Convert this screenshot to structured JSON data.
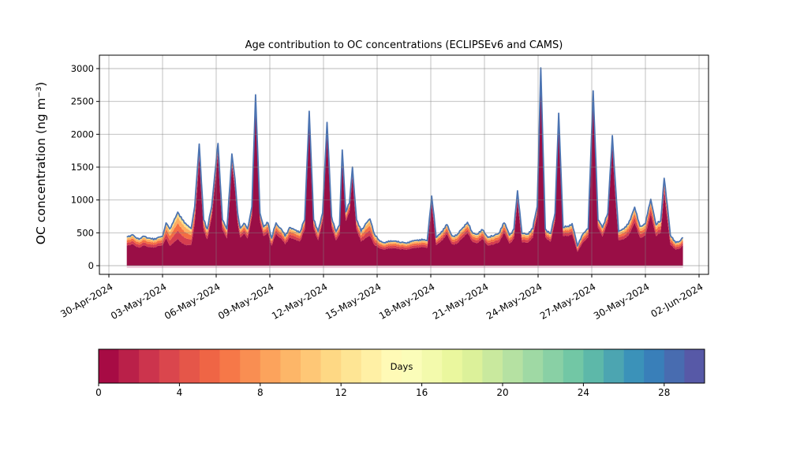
{
  "title": "Age contribution to OC concentrations (ECLIPSEv6 and CAMS)",
  "axes": {
    "ylabel": "OC concentration (ng m⁻³)",
    "yticks": [
      0,
      500,
      1000,
      1500,
      2000,
      2500,
      3000
    ],
    "xtick_labels": [
      "30-Apr-2024",
      "03-May-2024",
      "06-May-2024",
      "09-May-2024",
      "12-May-2024",
      "15-May-2024",
      "18-May-2024",
      "21-May-2024",
      "24-May-2024",
      "27-May-2024",
      "30-May-2024",
      "02-Jun-2024"
    ],
    "xtick_interval_days": 3,
    "grid": true
  },
  "colorbar": {
    "label": "Days",
    "ticks": [
      0,
      4,
      8,
      12,
      16,
      20,
      24,
      28
    ],
    "range": [
      0,
      30
    ],
    "segments": 30,
    "colormap_name": "Spectral",
    "colormap_anchors": [
      "#9e0142",
      "#d53e4f",
      "#f46d43",
      "#fdae61",
      "#fee08b",
      "#ffffbf",
      "#e6f598",
      "#abdda4",
      "#66c2a5",
      "#3288bd",
      "#5e4fa2"
    ]
  },
  "style": {
    "young_color": "#9a0e46",
    "fringe_colors": [
      "#d53e4f",
      "#f46d43",
      "#fdae61",
      "#fee08b"
    ],
    "fringe_cum_fractions": [
      0.32,
      0.59,
      0.82,
      1.0
    ],
    "total_line_color": "#4c74b2",
    "baseline_strip_color": "#dd9cba",
    "grid_color": "rgba(130,130,130,0.55)"
  },
  "chart_data": {
    "type": "area",
    "title": "Age contribution to OC concentrations (ECLIPSEv6 and CAMS)",
    "xlabel": "",
    "ylabel": "OC concentration (ng m⁻³)",
    "x_unit": "days since 30-Apr-2024 00:00",
    "x_range_days": [
      0,
      33
    ],
    "ylim": [
      -135,
      3205
    ],
    "y_data_range": [
      0,
      3010
    ],
    "legend": "colorbar (Days, 0-30, Spectral colormap)",
    "stack_note": "Stacked age-resolved OC: fresh emissions (0 days, dark red) dominate; thin aged fringe (red to orange to pale yellow) lies under the blue total line",
    "point_columns": [
      "day_since_30Apr",
      "total_OC_ng_m3",
      "aged_fringe_fraction"
    ],
    "points": [
      [
        1.0,
        440,
        0.3
      ],
      [
        1.3,
        470,
        0.3
      ],
      [
        1.5,
        430,
        0.31
      ],
      [
        1.75,
        415,
        0.32
      ],
      [
        2.0,
        445,
        0.31
      ],
      [
        2.25,
        420,
        0.32
      ],
      [
        2.5,
        395,
        0.31
      ],
      [
        2.75,
        430,
        0.3
      ],
      [
        3.0,
        445,
        0.31
      ],
      [
        3.2,
        650,
        0.36
      ],
      [
        3.4,
        560,
        0.46
      ],
      [
        3.6,
        660,
        0.48
      ],
      [
        3.85,
        815,
        0.5
      ],
      [
        4.1,
        700,
        0.52
      ],
      [
        4.35,
        620,
        0.5
      ],
      [
        4.6,
        565,
        0.44
      ],
      [
        4.8,
        900,
        0.28
      ],
      [
        5.05,
        1850,
        0.1
      ],
      [
        5.3,
        700,
        0.24
      ],
      [
        5.5,
        560,
        0.28
      ],
      [
        5.75,
        900,
        0.18
      ],
      [
        6.1,
        1860,
        0.09
      ],
      [
        6.35,
        700,
        0.22
      ],
      [
        6.6,
        560,
        0.26
      ],
      [
        6.88,
        1700,
        0.1
      ],
      [
        7.05,
        1320,
        0.12
      ],
      [
        7.2,
        800,
        0.18
      ],
      [
        7.35,
        570,
        0.25
      ],
      [
        7.55,
        645,
        0.24
      ],
      [
        7.75,
        560,
        0.26
      ],
      [
        8.0,
        900,
        0.16
      ],
      [
        8.2,
        2600,
        0.06
      ],
      [
        8.45,
        800,
        0.16
      ],
      [
        8.65,
        590,
        0.24
      ],
      [
        8.9,
        650,
        0.24
      ],
      [
        9.1,
        420,
        0.28
      ],
      [
        9.35,
        650,
        0.25
      ],
      [
        9.6,
        570,
        0.26
      ],
      [
        9.85,
        450,
        0.28
      ],
      [
        10.1,
        580,
        0.26
      ],
      [
        10.4,
        545,
        0.27
      ],
      [
        10.7,
        520,
        0.27
      ],
      [
        10.95,
        700,
        0.22
      ],
      [
        11.2,
        2350,
        0.06
      ],
      [
        11.45,
        700,
        0.2
      ],
      [
        11.7,
        520,
        0.26
      ],
      [
        11.95,
        800,
        0.16
      ],
      [
        12.2,
        2180,
        0.07
      ],
      [
        12.45,
        750,
        0.2
      ],
      [
        12.7,
        520,
        0.26
      ],
      [
        12.9,
        620,
        0.24
      ],
      [
        13.05,
        1760,
        0.09
      ],
      [
        13.25,
        820,
        0.17
      ],
      [
        13.45,
        950,
        0.15
      ],
      [
        13.62,
        1500,
        0.1
      ],
      [
        13.85,
        700,
        0.22
      ],
      [
        14.1,
        520,
        0.3
      ],
      [
        14.35,
        640,
        0.34
      ],
      [
        14.6,
        710,
        0.36
      ],
      [
        14.85,
        480,
        0.34
      ],
      [
        15.1,
        390,
        0.3
      ],
      [
        15.4,
        350,
        0.29
      ],
      [
        15.7,
        365,
        0.29
      ],
      [
        16.0,
        375,
        0.29
      ],
      [
        16.3,
        350,
        0.29
      ],
      [
        16.6,
        345,
        0.29
      ],
      [
        16.9,
        365,
        0.29
      ],
      [
        17.2,
        385,
        0.29
      ],
      [
        17.5,
        405,
        0.28
      ],
      [
        17.8,
        380,
        0.29
      ],
      [
        18.05,
        1060,
        0.1
      ],
      [
        18.3,
        430,
        0.27
      ],
      [
        18.6,
        520,
        0.26
      ],
      [
        18.9,
        625,
        0.24
      ],
      [
        19.2,
        450,
        0.28
      ],
      [
        19.5,
        480,
        0.28
      ],
      [
        19.8,
        580,
        0.26
      ],
      [
        20.05,
        660,
        0.24
      ],
      [
        20.3,
        520,
        0.27
      ],
      [
        20.6,
        480,
        0.28
      ],
      [
        20.9,
        545,
        0.26
      ],
      [
        21.2,
        430,
        0.29
      ],
      [
        21.5,
        450,
        0.29
      ],
      [
        21.8,
        490,
        0.28
      ],
      [
        22.1,
        650,
        0.24
      ],
      [
        22.4,
        465,
        0.28
      ],
      [
        22.65,
        560,
        0.26
      ],
      [
        22.85,
        1140,
        0.12
      ],
      [
        23.1,
        490,
        0.27
      ],
      [
        23.4,
        480,
        0.27
      ],
      [
        23.7,
        560,
        0.25
      ],
      [
        23.95,
        900,
        0.14
      ],
      [
        24.15,
        3010,
        0.05
      ],
      [
        24.4,
        560,
        0.22
      ],
      [
        24.7,
        490,
        0.25
      ],
      [
        24.95,
        800,
        0.14
      ],
      [
        25.15,
        2320,
        0.06
      ],
      [
        25.4,
        580,
        0.22
      ],
      [
        25.65,
        600,
        0.24
      ],
      [
        25.9,
        640,
        0.24
      ],
      [
        26.2,
        300,
        0.3
      ],
      [
        26.5,
        480,
        0.27
      ],
      [
        26.8,
        560,
        0.24
      ],
      [
        27.08,
        2660,
        0.05
      ],
      [
        27.35,
        700,
        0.18
      ],
      [
        27.6,
        580,
        0.24
      ],
      [
        27.9,
        800,
        0.17
      ],
      [
        28.15,
        1980,
        0.08
      ],
      [
        28.5,
        520,
        0.26
      ],
      [
        28.8,
        560,
        0.28
      ],
      [
        29.1,
        680,
        0.28
      ],
      [
        29.4,
        890,
        0.26
      ],
      [
        29.7,
        600,
        0.29
      ],
      [
        30.0,
        640,
        0.28
      ],
      [
        30.3,
        1010,
        0.22
      ],
      [
        30.6,
        620,
        0.28
      ],
      [
        30.85,
        680,
        0.26
      ],
      [
        31.05,
        1330,
        0.16
      ],
      [
        31.4,
        460,
        0.3
      ],
      [
        31.7,
        350,
        0.31
      ],
      [
        31.9,
        370,
        0.3
      ],
      [
        32.1,
        430,
        0.28
      ]
    ]
  }
}
